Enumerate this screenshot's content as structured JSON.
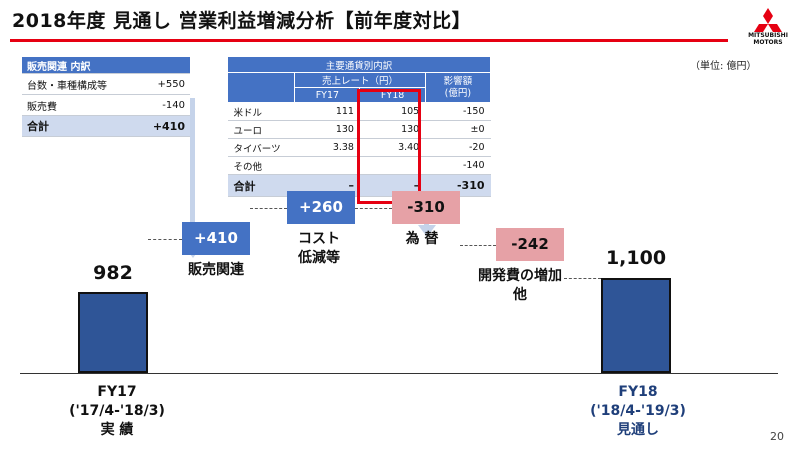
{
  "title": "2018年度 見通し 営業利益増減分析【前年度対比】",
  "logo": {
    "name": "MITSUBISHI MOTORS",
    "line1": "MITSUBISHI",
    "line2": "MOTORS",
    "color": "#e60012"
  },
  "unit_note": "（単位: 億円）",
  "sales_table": {
    "header": "販売関連 内訳",
    "rows": [
      {
        "label": "台数・車種構成等",
        "value": "+550"
      },
      {
        "label": "販売費",
        "value": "-140"
      }
    ],
    "total": {
      "label": "合計",
      "value": "+410"
    }
  },
  "fx_table": {
    "title": "主要通貨別内訳",
    "rate_header": "売上レート（円）",
    "col_fy17": "FY17",
    "col_fy18": "FY18",
    "impact_header": "影響額\n(億円)",
    "rows": [
      {
        "label": "米ドル",
        "fy17": "111",
        "fy18": "105",
        "impact": "-150"
      },
      {
        "label": "ユーロ",
        "fy17": "130",
        "fy18": "130",
        "impact": "±0"
      },
      {
        "label": "タイバーツ",
        "fy17": "3.38",
        "fy18": "3.40",
        "impact": "-20"
      },
      {
        "label": "その他",
        "fy17": "",
        "fy18": "",
        "impact": "-140"
      }
    ],
    "total": {
      "label": "合計",
      "fy17": "–",
      "fy18": "–",
      "impact": "-310"
    }
  },
  "chart_data": {
    "type": "bar",
    "subtype": "waterfall",
    "start": {
      "value": 982,
      "label": "982",
      "period": "FY17",
      "range": "('17/4-'18/3)",
      "name": "実 績"
    },
    "steps": [
      {
        "value": 410,
        "label": "+410",
        "name": "販売関連"
      },
      {
        "value": 260,
        "label": "+260",
        "name": "コスト\n低減等"
      },
      {
        "value": -310,
        "label": "-310",
        "name": "為 替"
      },
      {
        "value": -242,
        "label": "-242",
        "name": "開発費の増加\n他"
      }
    ],
    "end": {
      "value": 1100,
      "label": "1,100",
      "period": "FY18",
      "range": "('18/4-'19/3)",
      "name": "見通し"
    },
    "colors": {
      "base_bar": "#2f5597",
      "positive": "#4472c4",
      "negative": "#e6a1a6",
      "fy18_text": "#1f3f7a"
    }
  },
  "page_number": "20"
}
